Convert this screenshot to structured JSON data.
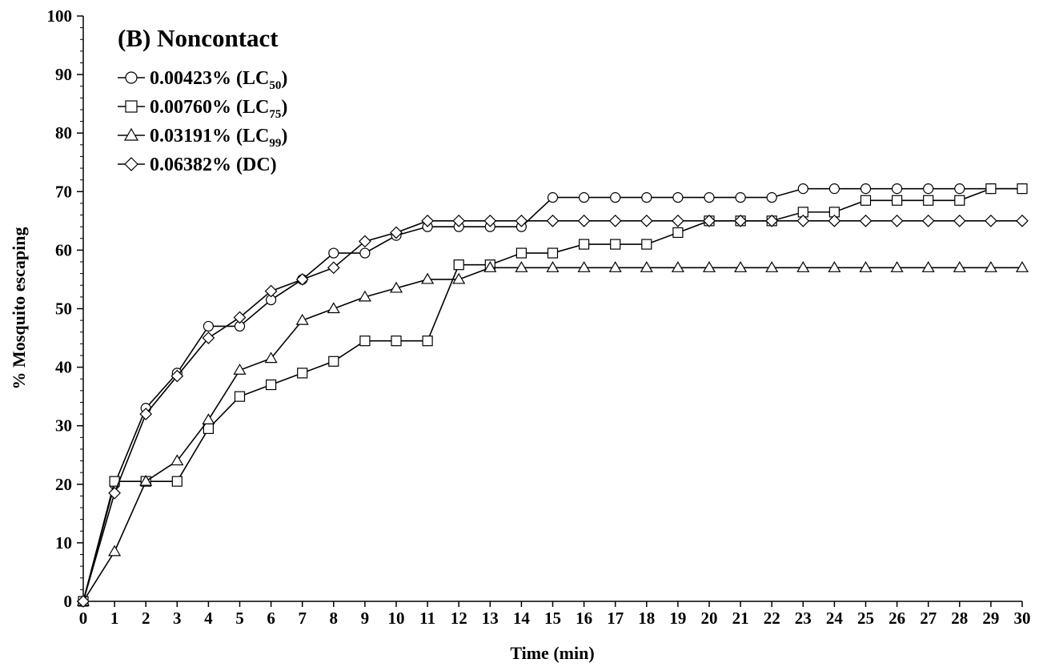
{
  "chart_data": {
    "type": "line",
    "title": "(B) Noncontact",
    "xlabel": "Time (min)",
    "ylabel": "% Mosquito escaping",
    "xlim": [
      0,
      30
    ],
    "ylim": [
      0,
      100
    ],
    "x_ticks": [
      0,
      1,
      2,
      3,
      4,
      5,
      6,
      7,
      8,
      9,
      10,
      11,
      12,
      13,
      14,
      15,
      16,
      17,
      18,
      19,
      20,
      21,
      22,
      23,
      24,
      25,
      26,
      27,
      28,
      29,
      30
    ],
    "y_ticks": [
      0,
      10,
      20,
      30,
      40,
      50,
      60,
      70,
      80,
      90,
      100
    ],
    "grid": false,
    "legend_position": "top-left",
    "x": [
      0,
      1,
      2,
      3,
      4,
      5,
      6,
      7,
      8,
      9,
      10,
      11,
      12,
      13,
      14,
      15,
      16,
      17,
      18,
      19,
      20,
      21,
      22,
      23,
      24,
      25,
      26,
      27,
      28,
      29,
      30
    ],
    "series": [
      {
        "name": "0.00423% (LC50)",
        "legend_main": "0.00423% (LC",
        "legend_sub": "50",
        "legend_end": ")",
        "marker": "circle",
        "values": [
          0,
          20,
          33,
          39,
          47,
          47,
          51.5,
          55,
          59.5,
          59.5,
          62.5,
          64,
          64,
          64,
          64,
          69,
          69,
          69,
          69,
          69,
          69,
          69,
          69,
          70.5,
          70.5,
          70.5,
          70.5,
          70.5,
          70.5,
          70.5,
          70.5
        ]
      },
      {
        "name": "0.00760% (LC75)",
        "legend_main": "0.00760% (LC",
        "legend_sub": "75",
        "legend_end": ")",
        "marker": "square",
        "values": [
          0,
          20.5,
          20.5,
          20.5,
          29.5,
          35,
          37,
          39,
          41,
          44.5,
          44.5,
          44.5,
          57.5,
          57.5,
          59.5,
          59.5,
          61,
          61,
          61,
          63,
          65,
          65,
          65,
          66.5,
          66.5,
          68.5,
          68.5,
          68.5,
          68.5,
          70.5,
          70.5
        ]
      },
      {
        "name": "0.03191% (LC99)",
        "legend_main": "0.03191% (LC",
        "legend_sub": "99",
        "legend_end": ")",
        "marker": "triangle",
        "values": [
          0,
          8.5,
          20.5,
          24,
          31,
          39.5,
          41.5,
          48,
          50,
          52,
          53.5,
          55,
          55,
          57,
          57,
          57,
          57,
          57,
          57,
          57,
          57,
          57,
          57,
          57,
          57,
          57,
          57,
          57,
          57,
          57,
          57
        ]
      },
      {
        "name": "0.06382% (DC)",
        "legend_main": "0.06382% (DC)",
        "legend_sub": "",
        "legend_end": "",
        "marker": "diamond",
        "values": [
          0,
          18.5,
          32,
          38.5,
          45,
          48.5,
          53,
          55,
          57,
          61.5,
          63,
          65,
          65,
          65,
          65,
          65,
          65,
          65,
          65,
          65,
          65,
          65,
          65,
          65,
          65,
          65,
          65,
          65,
          65,
          65,
          65
        ]
      }
    ]
  }
}
